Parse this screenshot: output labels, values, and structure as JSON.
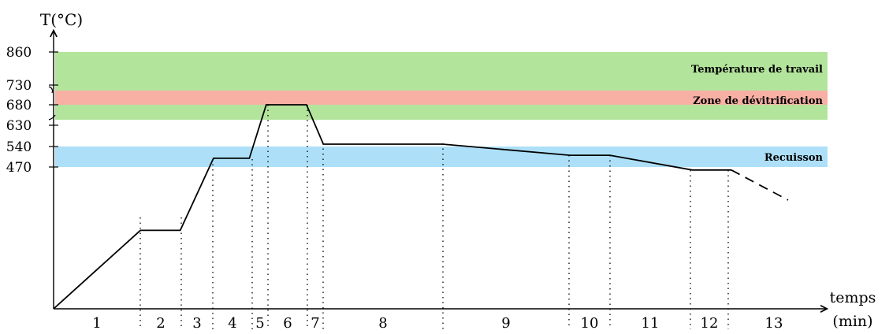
{
  "chart_data": {
    "type": "line",
    "ylabel": "T(°C)",
    "xlabel_top": "temps",
    "xlabel_bottom": "(min)",
    "yticks": [
      "860",
      "730",
      "680",
      "630",
      "540",
      "470"
    ],
    "bands": [
      {
        "name": "Température de travail",
        "from": 630,
        "to": 860,
        "color": "#b3e49c"
      },
      {
        "name": "Zone de dévitrification",
        "from": 680,
        "to": 730,
        "color": "#f8b0a4"
      },
      {
        "name": "Recuisson",
        "from": 470,
        "to": 540,
        "color": "#ade0f8"
      }
    ],
    "line": {
      "x": [
        0,
        1,
        2,
        3,
        4,
        4.4,
        5.4,
        5.8,
        8.7,
        11.8,
        12.8,
        14.8,
        15.8
      ],
      "y": [
        0,
        260,
        260,
        500,
        500,
        680,
        680,
        550,
        550,
        510,
        510,
        460,
        460
      ]
    },
    "line_dashed": {
      "x": [
        15.8,
        16.6
      ],
      "y": [
        460,
        410
      ]
    },
    "phase_boundaries": [
      2.2,
      3.2,
      4.0,
      4.9,
      5.4,
      6.4,
      6.8,
      9.8,
      12.9,
      13.9,
      15.9,
      16.9
    ],
    "phases": [
      "1",
      "2",
      "3",
      "4",
      "5",
      "6",
      "7",
      "8",
      "9",
      "10",
      "11",
      "12",
      "13"
    ]
  }
}
